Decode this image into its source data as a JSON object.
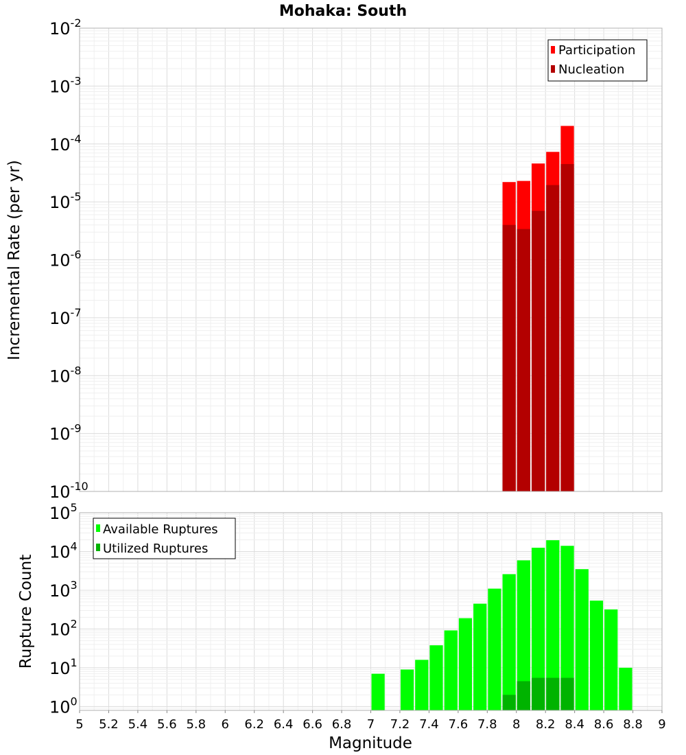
{
  "chart_data": [
    {
      "type": "bar",
      "title": "Mohaka: South",
      "ylabel": "Incremental Rate (per yr)",
      "xlabel": "",
      "xlim": [
        5,
        9
      ],
      "ylim_log10": [
        -10,
        -2
      ],
      "y_scale": "log",
      "bin_width": 0.1,
      "legend_position": "top-right",
      "y_tick_exponents": [
        "-2",
        "-3",
        "-4",
        "-5",
        "-6",
        "-7",
        "-8",
        "-9",
        "-10"
      ],
      "series": [
        {
          "name": "Participation",
          "color": "#ff0000",
          "x": [
            7.95,
            8.05,
            8.15,
            8.25,
            8.35
          ],
          "values": [
            2.2e-05,
            2.3e-05,
            4.6e-05,
            7.3e-05,
            0.000205
          ]
        },
        {
          "name": "Nucleation",
          "color": "#b30000",
          "x": [
            7.95,
            8.05,
            8.15,
            8.25,
            8.35
          ],
          "values": [
            4e-06,
            3.4e-06,
            7e-06,
            1.95e-05,
            4.5e-05
          ]
        }
      ]
    },
    {
      "type": "bar",
      "title": "",
      "ylabel": "Rupture Count",
      "xlabel": "Magnitude",
      "xlim": [
        5,
        9
      ],
      "ylim_log10": [
        -0.1,
        5
      ],
      "y_scale": "log",
      "bin_width": 0.1,
      "legend_position": "top-left",
      "y_tick_exponents": [
        "5",
        "4",
        "3",
        "2",
        "1",
        "0"
      ],
      "x_tick_labels": [
        "5",
        "5.2",
        "5.4",
        "5.6",
        "5.8",
        "6",
        "6.2",
        "6.4",
        "6.6",
        "6.8",
        "7",
        "7.2",
        "7.4",
        "7.6",
        "7.8",
        "8",
        "8.2",
        "8.4",
        "8.6",
        "8.8",
        "9"
      ],
      "series": [
        {
          "name": "Available Ruptures",
          "color": "#00ff00",
          "x": [
            7.05,
            7.25,
            7.35,
            7.45,
            7.55,
            7.65,
            7.75,
            7.85,
            7.95,
            8.05,
            8.15,
            8.25,
            8.35,
            8.45,
            8.55,
            8.65,
            8.75
          ],
          "values": [
            7,
            9,
            16,
            38,
            92,
            190,
            450,
            1100,
            2600,
            5900,
            12500,
            19500,
            14000,
            3500,
            540,
            320,
            10
          ]
        },
        {
          "name": "Utilized Ruptures",
          "color": "#00b300",
          "x": [
            7.95,
            8.05,
            8.15,
            8.25,
            8.35
          ],
          "values": [
            2,
            4.5,
            5.5,
            5.5,
            5.5
          ]
        }
      ]
    }
  ]
}
